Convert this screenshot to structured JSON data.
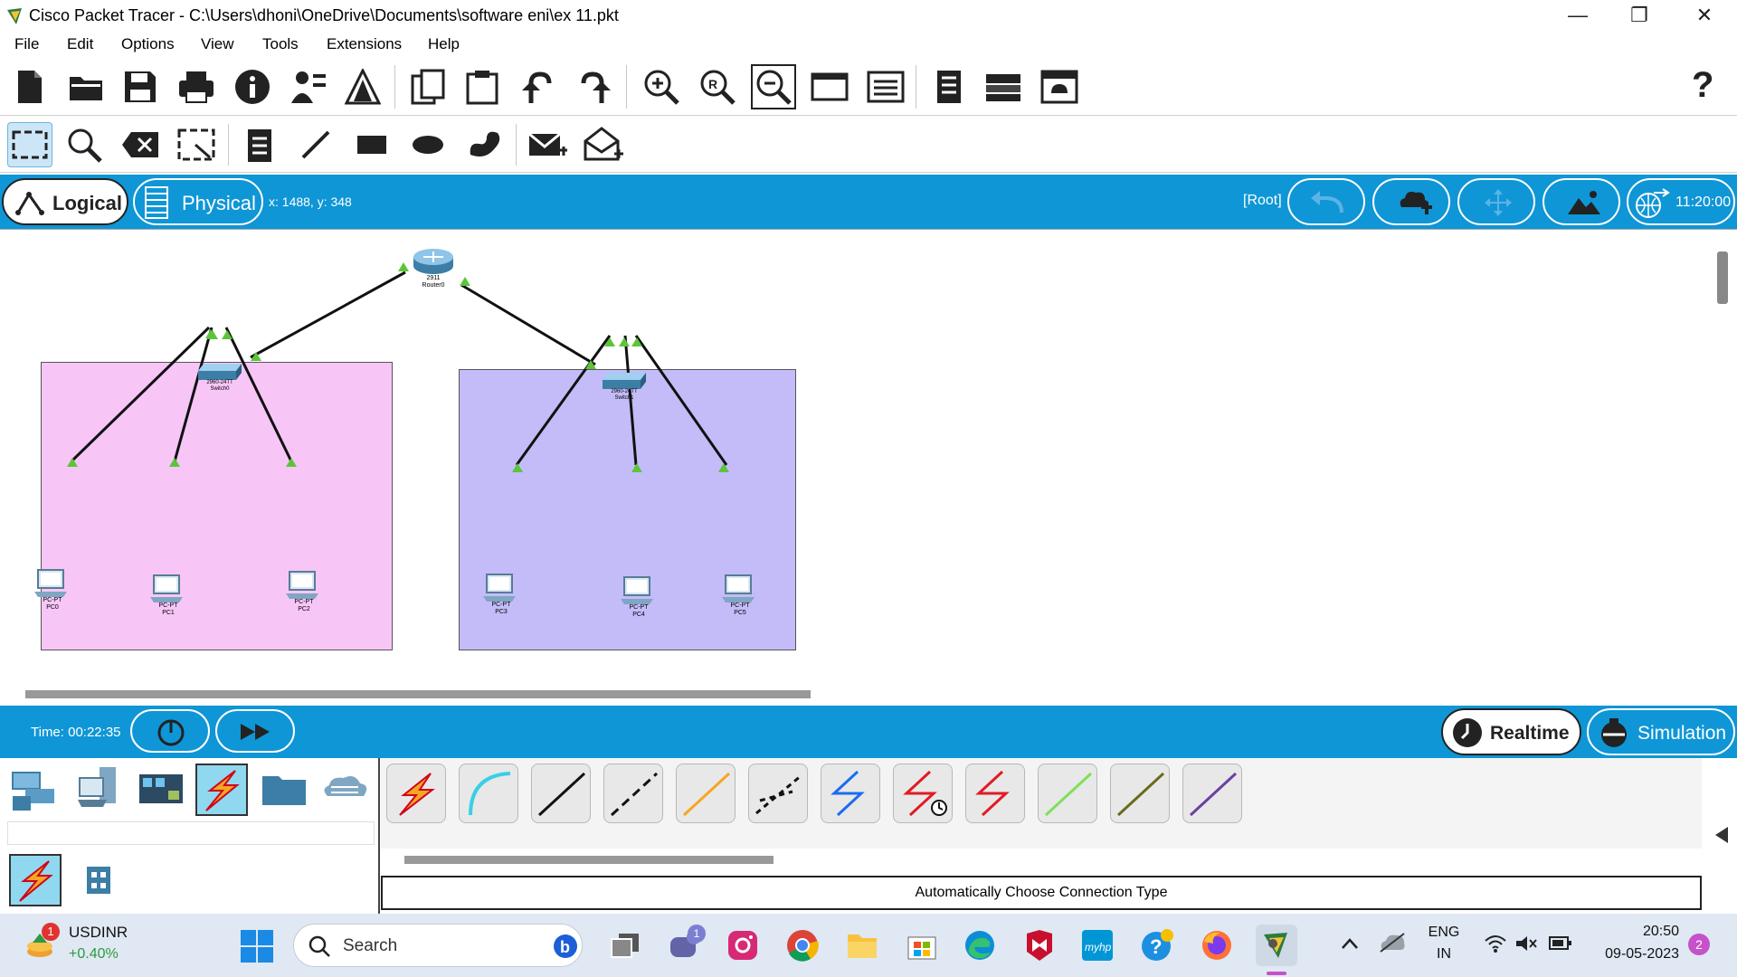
{
  "window": {
    "title": "Cisco Packet Tracer - C:\\Users\\dhoni\\OneDrive\\Documents\\software eni\\ex 11.pkt",
    "minimize": "—",
    "maximize": "❐",
    "close": "✕"
  },
  "menu": [
    "File",
    "Edit",
    "Options",
    "View",
    "Tools",
    "Extensions",
    "Help"
  ],
  "toolbar_help": "?",
  "view_tabs": {
    "logical": "Logical",
    "physical": "Physical"
  },
  "coords": "x: 1488, y: 348",
  "root_label": "[Root]",
  "clock": "11:20:00",
  "devices": {
    "router": {
      "model": "2911",
      "name": "Router0"
    },
    "switch0": {
      "model": "2960-24TT",
      "name": "Switch0"
    },
    "switch1": {
      "model": "2960-24TT",
      "name": "Switch1"
    },
    "pcs": [
      {
        "model": "PC-PT",
        "name": "PC0"
      },
      {
        "model": "PC-PT",
        "name": "PC1"
      },
      {
        "model": "PC-PT",
        "name": "PC2"
      },
      {
        "model": "PC-PT",
        "name": "PC3"
      },
      {
        "model": "PC-PT",
        "name": "PC4"
      },
      {
        "model": "PC-PT",
        "name": "PC5"
      }
    ]
  },
  "sim": {
    "time": "Time: 00:22:35",
    "realtime": "Realtime",
    "simulation": "Simulation"
  },
  "connection_type_label": "Automatically Choose Connection Type",
  "taskbar": {
    "ticker_name": "USDINR",
    "ticker_change": "+0.40%",
    "ticker_badge": "1",
    "search": "Search",
    "teams_badge": "1",
    "lang_top": "ENG",
    "lang_bottom": "IN",
    "time": "20:50",
    "date": "09-05-2023",
    "notif_count": "2"
  },
  "colors": {
    "accent_blue": "#0f96d6",
    "zone_pink": "#f7c6f7",
    "zone_purple": "#c3bcf9",
    "link_green": "#5cc43a"
  }
}
